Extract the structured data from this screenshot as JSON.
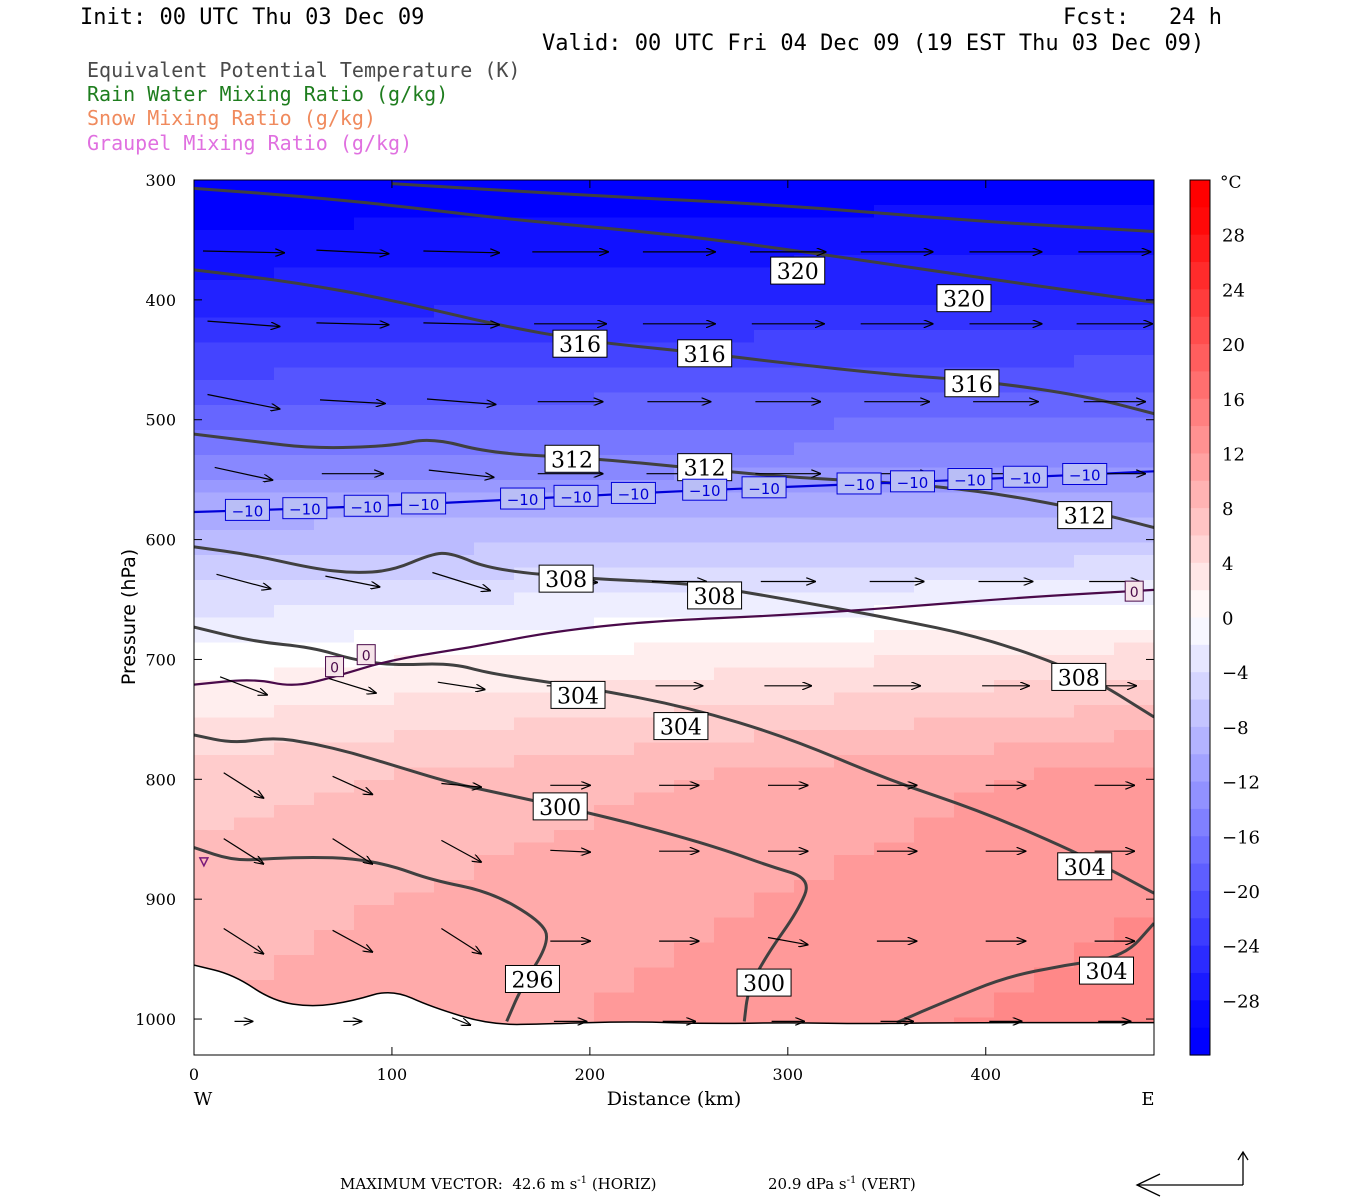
{
  "header": {
    "init": "Init: 00 UTC Thu 03 Dec 09",
    "fcst": "Fcst:   24 h",
    "valid": "Valid: 00 UTC Fri 04 Dec 09 (19 EST Thu 03 Dec 09)"
  },
  "legend": [
    {
      "label": "Equivalent Potential Temperature (K)",
      "color": "#4a4a4a"
    },
    {
      "label": "Rain Water Mixing Ratio (g/kg)",
      "color": "#1e7d1e"
    },
    {
      "label": "Snow Mixing Ratio (g/kg)",
      "color": "#f08a5d"
    },
    {
      "label": "Graupel Mixing Ratio (g/kg)",
      "color": "#e070e0"
    }
  ],
  "footer": {
    "prefix": "MAXIMUM VECTOR:",
    "horiz_value": "42.6",
    "horiz_unit": "m s",
    "horiz_exp": "-1",
    "horiz_tag": "(HORIZ)",
    "vert_value": "20.9",
    "vert_unit": "dPa s",
    "vert_exp": "-1",
    "vert_tag": "(VERT)"
  },
  "chart_data": {
    "type": "heatmap",
    "xlabel": "Distance (km)",
    "ylabel": "Pressure (hPa)",
    "xlim": [
      0,
      485
    ],
    "ylim": [
      1030,
      300
    ],
    "x_ticks": [
      0,
      100,
      200,
      300,
      400
    ],
    "y_ticks": [
      300,
      400,
      500,
      600,
      700,
      800,
      900,
      1000
    ],
    "x_end_labels": {
      "left": "W",
      "right": "E"
    },
    "colorbar": {
      "unit": "°C",
      "tick_labels": [
        "28",
        "24",
        "20",
        "16",
        "12",
        "8",
        "4",
        "0",
        "−4",
        "−8",
        "−12",
        "−16",
        "−20",
        "−24",
        "−28"
      ],
      "tick_values": [
        28,
        24,
        20,
        16,
        12,
        8,
        4,
        0,
        -4,
        -8,
        -12,
        -16,
        -20,
        -24,
        -28
      ],
      "range": [
        -32,
        32
      ],
      "cold_color": "#0000ff",
      "warm_color": "#ff0000"
    },
    "temperature_field": {
      "pressure_levels": [
        300,
        400,
        500,
        575,
        650,
        700,
        750,
        800,
        900,
        1000
      ],
      "temp_at_x0": [
        -31,
        -26,
        -18,
        -10,
        -4,
        0,
        3,
        6,
        8,
        9
      ],
      "temp_at_x485": [
        -30,
        -25,
        -17,
        -10,
        -1,
        4,
        8,
        12,
        13,
        14
      ]
    },
    "theta_e_contours": [
      {
        "value": 320,
        "points": [
          [
            0,
            307
          ],
          [
            50,
            313
          ],
          [
            100,
            321
          ],
          [
            150,
            331
          ],
          [
            200,
            339
          ],
          [
            250,
            347
          ],
          [
            300,
            358
          ],
          [
            350,
            370
          ],
          [
            400,
            382
          ],
          [
            450,
            394
          ],
          [
            485,
            402
          ]
        ]
      },
      {
        "value": 320,
        "points": [
          [
            100,
            303
          ],
          [
            200,
            313
          ],
          [
            300,
            321
          ],
          [
            400,
            335
          ],
          [
            485,
            343
          ]
        ]
      },
      {
        "value": 316,
        "points": [
          [
            0,
            375
          ],
          [
            50,
            385
          ],
          [
            100,
            400
          ],
          [
            150,
            420
          ],
          [
            200,
            435
          ],
          [
            250,
            443
          ],
          [
            300,
            453
          ],
          [
            350,
            462
          ],
          [
            400,
            468
          ],
          [
            450,
            480
          ],
          [
            485,
            495
          ]
        ]
      },
      {
        "value": 312,
        "points": [
          [
            0,
            512
          ],
          [
            30,
            518
          ],
          [
            60,
            524
          ],
          [
            100,
            522
          ],
          [
            120,
            515
          ],
          [
            150,
            528
          ],
          [
            200,
            532
          ],
          [
            250,
            540
          ],
          [
            300,
            548
          ],
          [
            350,
            552
          ],
          [
            400,
            560
          ],
          [
            450,
            575
          ],
          [
            485,
            590
          ]
        ]
      },
      {
        "value": 308,
        "points": [
          [
            0,
            606
          ],
          [
            30,
            613
          ],
          [
            60,
            624
          ],
          [
            80,
            628
          ],
          [
            100,
            626
          ],
          [
            120,
            612
          ],
          [
            130,
            611
          ],
          [
            150,
            625
          ],
          [
            200,
            633
          ],
          [
            250,
            636
          ],
          [
            300,
            650
          ],
          [
            350,
            665
          ],
          [
            400,
            682
          ],
          [
            450,
            712
          ],
          [
            485,
            748
          ]
        ]
      },
      {
        "value": 304,
        "points": [
          [
            0,
            673
          ],
          [
            30,
            685
          ],
          [
            60,
            690
          ],
          [
            80,
            700
          ],
          [
            100,
            705
          ],
          [
            130,
            703
          ],
          [
            150,
            712
          ],
          [
            200,
            724
          ],
          [
            250,
            740
          ],
          [
            300,
            765
          ],
          [
            350,
            800
          ],
          [
            400,
            828
          ],
          [
            450,
            864
          ],
          [
            485,
            895
          ]
        ]
      },
      {
        "value": 304,
        "points": [
          [
            355,
            1003
          ],
          [
            380,
            985
          ],
          [
            410,
            965
          ],
          [
            440,
            955
          ],
          [
            470,
            948
          ],
          [
            485,
            920
          ]
        ]
      },
      {
        "value": 300,
        "points": [
          [
            0,
            763
          ],
          [
            20,
            770
          ],
          [
            40,
            765
          ],
          [
            60,
            770
          ],
          [
            80,
            778
          ],
          [
            100,
            788
          ],
          [
            130,
            803
          ],
          [
            150,
            810
          ],
          [
            200,
            828
          ],
          [
            240,
            845
          ],
          [
            270,
            860
          ],
          [
            290,
            872
          ],
          [
            312,
            883
          ],
          [
            305,
            910
          ],
          [
            290,
            945
          ],
          [
            280,
            975
          ],
          [
            278,
            1002
          ]
        ]
      },
      {
        "value": 296,
        "points": [
          [
            0,
            857
          ],
          [
            20,
            868
          ],
          [
            40,
            866
          ],
          [
            60,
            865
          ],
          [
            80,
            866
          ],
          [
            100,
            872
          ],
          [
            120,
            884
          ],
          [
            150,
            894
          ],
          [
            175,
            918
          ],
          [
            180,
            935
          ],
          [
            165,
            975
          ],
          [
            158,
            1002
          ]
        ]
      }
    ],
    "theta_e_labels": [
      {
        "text": "320",
        "x": 305,
        "p": 376
      },
      {
        "text": "320",
        "x": 389,
        "p": 399
      },
      {
        "text": "316",
        "x": 195,
        "p": 437
      },
      {
        "text": "316",
        "x": 258,
        "p": 445
      },
      {
        "text": "316",
        "x": 393,
        "p": 470
      },
      {
        "text": "312",
        "x": 191,
        "p": 533
      },
      {
        "text": "312",
        "x": 258,
        "p": 540
      },
      {
        "text": "312",
        "x": 450,
        "p": 580
      },
      {
        "text": "308",
        "x": 188,
        "p": 633
      },
      {
        "text": "308",
        "x": 263,
        "p": 647
      },
      {
        "text": "308",
        "x": 447,
        "p": 715
      },
      {
        "text": "304",
        "x": 194,
        "p": 730
      },
      {
        "text": "304",
        "x": 246,
        "p": 756
      },
      {
        "text": "304",
        "x": 450,
        "p": 873
      },
      {
        "text": "304",
        "x": 461,
        "p": 960
      },
      {
        "text": "300",
        "x": 185,
        "p": 823
      },
      {
        "text": "300",
        "x": 288,
        "p": 970
      },
      {
        "text": "296",
        "x": 171,
        "p": 967
      }
    ],
    "isotherm_minus10": {
      "value": -10,
      "points": [
        [
          0,
          577
        ],
        [
          60,
          574
        ],
        [
          120,
          570
        ],
        [
          180,
          565
        ],
        [
          240,
          560
        ],
        [
          300,
          556
        ],
        [
          360,
          552
        ],
        [
          420,
          548
        ],
        [
          485,
          543
        ]
      ],
      "label_x": [
        27,
        56,
        87,
        116,
        166,
        193,
        222,
        258,
        288,
        336,
        363,
        392,
        420,
        450
      ]
    },
    "isotherm_zero": {
      "value": 0,
      "points": [
        [
          0,
          721
        ],
        [
          30,
          716
        ],
        [
          50,
          723
        ],
        [
          70,
          715
        ],
        [
          100,
          700
        ],
        [
          140,
          690
        ],
        [
          180,
          677
        ],
        [
          230,
          668
        ],
        [
          300,
          663
        ],
        [
          360,
          656
        ],
        [
          420,
          648
        ],
        [
          485,
          642
        ]
      ],
      "labels": [
        {
          "x": 71,
          "p": 706
        },
        {
          "x": 87,
          "p": 696
        },
        {
          "x": 475,
          "p": 643
        }
      ]
    },
    "graupel_contour_x": 5,
    "graupel_contour_p": 868,
    "ground_pressure": [
      [
        0,
        955
      ],
      [
        20,
        963
      ],
      [
        40,
        985
      ],
      [
        60,
        990
      ],
      [
        80,
        985
      ],
      [
        100,
        975
      ],
      [
        120,
        990
      ],
      [
        150,
        1005
      ],
      [
        180,
        1004
      ],
      [
        220,
        1002
      ],
      [
        260,
        1004
      ],
      [
        300,
        1003
      ],
      [
        340,
        1004
      ],
      [
        380,
        1003
      ],
      [
        485,
        1003
      ]
    ],
    "wind_vectors": {
      "x_positions": [
        25,
        80,
        135,
        190,
        245,
        300,
        355,
        410,
        465
      ],
      "pressure_levels": [
        360,
        420,
        485,
        545,
        635,
        722,
        805,
        860,
        935,
        1002
      ],
      "rows": [
        [
          [
            45,
            -1
          ],
          [
            40,
            -2
          ],
          [
            42,
            -1
          ],
          [
            42,
            0
          ],
          [
            40,
            0
          ],
          [
            42,
            0
          ],
          [
            40,
            0
          ],
          [
            40,
            0
          ],
          [
            40,
            0
          ]
        ],
        [
          [
            40,
            -3
          ],
          [
            40,
            -1
          ],
          [
            42,
            -1
          ],
          [
            40,
            0
          ],
          [
            40,
            0
          ],
          [
            40,
            0
          ],
          [
            40,
            0
          ],
          [
            40,
            0
          ],
          [
            42,
            0
          ]
        ],
        [
          [
            40,
            -8
          ],
          [
            36,
            -2
          ],
          [
            38,
            -3
          ],
          [
            36,
            0
          ],
          [
            35,
            0
          ],
          [
            36,
            0
          ],
          [
            36,
            0
          ],
          [
            36,
            0
          ],
          [
            34,
            0
          ]
        ],
        [
          [
            32,
            -7
          ],
          [
            34,
            0
          ],
          [
            36,
            -4
          ],
          [
            36,
            0
          ],
          [
            36,
            0
          ],
          [
            36,
            0
          ],
          [
            36,
            0
          ],
          [
            36,
            0
          ],
          [
            34,
            0
          ]
        ],
        [
          [
            30,
            -8
          ],
          [
            30,
            -6
          ],
          [
            32,
            -10
          ],
          [
            30,
            -1
          ],
          [
            30,
            0
          ],
          [
            30,
            0
          ],
          [
            30,
            0
          ],
          [
            30,
            0
          ],
          [
            28,
            0
          ]
        ],
        [
          [
            26,
            -10
          ],
          [
            26,
            -8
          ],
          [
            26,
            -4
          ],
          [
            26,
            0
          ],
          [
            26,
            0
          ],
          [
            26,
            0
          ],
          [
            26,
            0
          ],
          [
            26,
            0
          ],
          [
            24,
            0
          ]
        ],
        [
          [
            22,
            -14
          ],
          [
            22,
            -10
          ],
          [
            22,
            -2
          ],
          [
            22,
            0
          ],
          [
            22,
            0
          ],
          [
            22,
            0
          ],
          [
            22,
            0
          ],
          [
            22,
            0
          ],
          [
            22,
            0
          ]
        ],
        [
          [
            22,
            -14
          ],
          [
            22,
            -14
          ],
          [
            22,
            -12
          ],
          [
            22,
            -1
          ],
          [
            22,
            0
          ],
          [
            22,
            0
          ],
          [
            22,
            0
          ],
          [
            22,
            0
          ],
          [
            22,
            0
          ]
        ],
        [
          [
            22,
            -14
          ],
          [
            22,
            -12
          ],
          [
            22,
            -14
          ],
          [
            22,
            0
          ],
          [
            22,
            0
          ],
          [
            22,
            -4
          ],
          [
            22,
            0
          ],
          [
            22,
            0
          ],
          [
            22,
            0
          ]
        ],
        [
          [
            10,
            0
          ],
          [
            10,
            0
          ],
          [
            10,
            -4
          ],
          [
            18,
            0
          ],
          [
            18,
            0
          ],
          [
            18,
            0
          ],
          [
            18,
            0
          ],
          [
            18,
            0
          ],
          [
            18,
            0
          ]
        ]
      ]
    }
  }
}
